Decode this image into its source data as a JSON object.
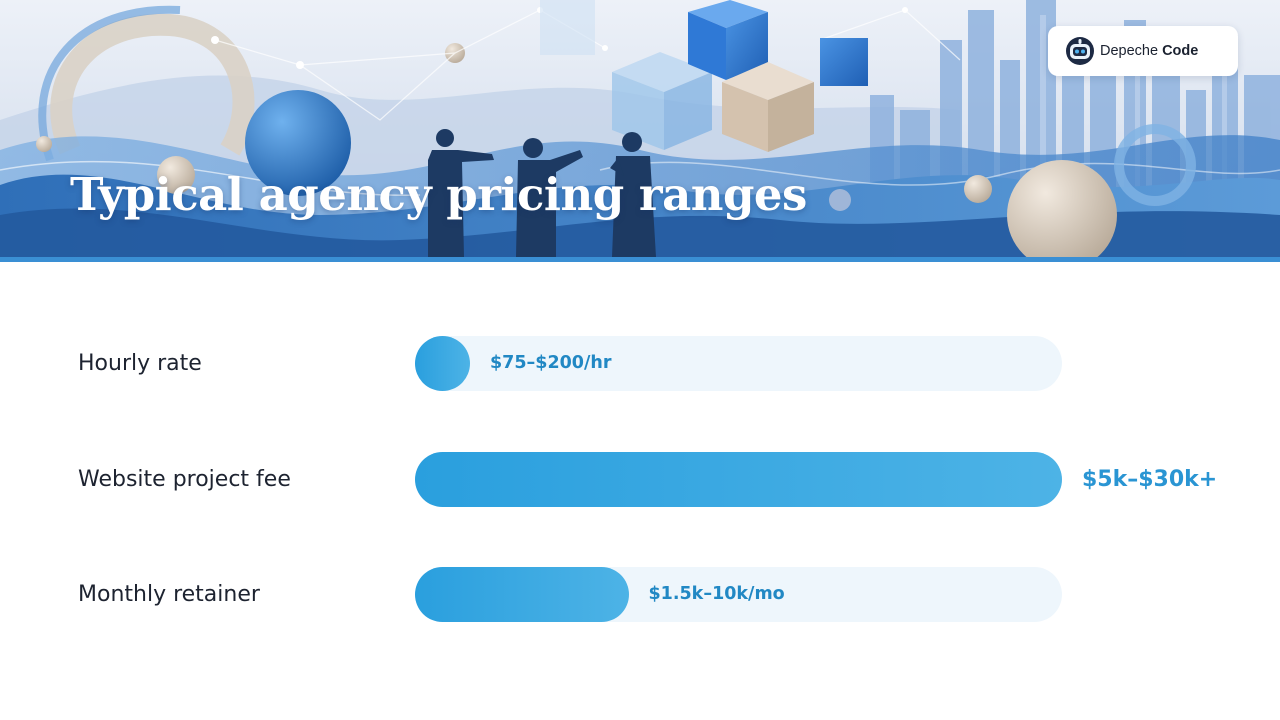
{
  "slide": {
    "title": "Typical agency pricing ranges",
    "brand": {
      "name_regular": "Depeche",
      "name_bold": "Code"
    }
  },
  "colors": {
    "accent": "#2a9fde",
    "bar_track": "#eef6fc",
    "value_text": "#2188c4",
    "label_text": "#1d2330",
    "banner_rule": "#3a8fd4"
  },
  "icons": {
    "logo": "robot-head-icon",
    "banner": "abstract-city-team-illustration"
  },
  "chart_data": {
    "type": "bar",
    "orientation": "horizontal",
    "title": "Typical agency pricing ranges",
    "categories": [
      "Hourly rate",
      "Website project fee",
      "Monthly retainer"
    ],
    "values": [
      0.085,
      1.0,
      0.33
    ],
    "value_labels": [
      "$75–$200/hr",
      "$5k–$30k+",
      "$1.5k–10k/mo"
    ],
    "xlim": [
      0,
      1
    ],
    "grid": false,
    "legend": "none",
    "xlabel": "",
    "ylabel": ""
  }
}
